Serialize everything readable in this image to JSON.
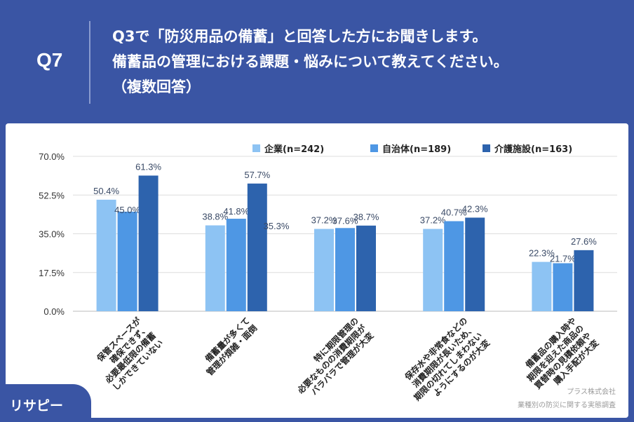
{
  "header": {
    "qnum": "Q7",
    "lines": [
      "Q3で「防災用品の備蓄」と回答した方にお聞きします。",
      "備蓄品の管理における課題・悩みについて教えてください。",
      "（複数回答）"
    ]
  },
  "chart_data": {
    "type": "bar",
    "categories": [
      [
        "保管スペースが",
        "確保できず、",
        "必要最低限の備蓄",
        "しかできていない"
      ],
      [
        "備蓄量が多くて",
        "管理が煩雑・面倒"
      ],
      [
        "特に期限管理の",
        "必要なものの消費期限が",
        "バラバラで管理が大変"
      ],
      [
        "保存水や非常食などの",
        "消費期限が長いため、",
        "期限の切れてしまわない",
        "ようにするのが大変"
      ],
      [
        "備蓄品の購入時や",
        "期限を迎えた商品の",
        "買替時の見積依頼や",
        "購入手配が大変"
      ]
    ],
    "series": [
      {
        "name": "企業(n=242)",
        "values": [
          50.4,
          38.8,
          37.2,
          37.2,
          22.3
        ],
        "labels": [
          "50.4%",
          "38.8%",
          "37.2%",
          "37.2%",
          "22.3%"
        ],
        "color": "#8dc3f3"
      },
      {
        "name": "自治体(n=189)",
        "values": [
          45.0,
          41.8,
          37.6,
          40.7,
          21.7
        ],
        "labels": [
          "45.0%",
          "41.8%",
          "37.6%",
          "40.7%",
          "21.7%"
        ],
        "color": "#4e97e4"
      },
      {
        "name": "介護施設(n=163)",
        "values": [
          61.3,
          57.7,
          38.7,
          42.3,
          27.6
        ],
        "labels": [
          "61.3%",
          "57.7%",
          "38.7%",
          "42.3%",
          "27.6%"
        ],
        "color": "#2d63ad"
      }
    ],
    "extra_label": "35.3%",
    "yticks": [
      "0.0%",
      "17.5%",
      "35.0%",
      "52.5%",
      "70.0%"
    ],
    "ytick_values": [
      0,
      17.5,
      35,
      52.5,
      70
    ],
    "ylim": [
      0,
      70
    ],
    "grid": true,
    "legend_position": "top-right"
  },
  "footer": {
    "logo": "リサピー",
    "credit1": "プラス株式会社",
    "credit2": "業種別の防災に関する実態調査"
  }
}
